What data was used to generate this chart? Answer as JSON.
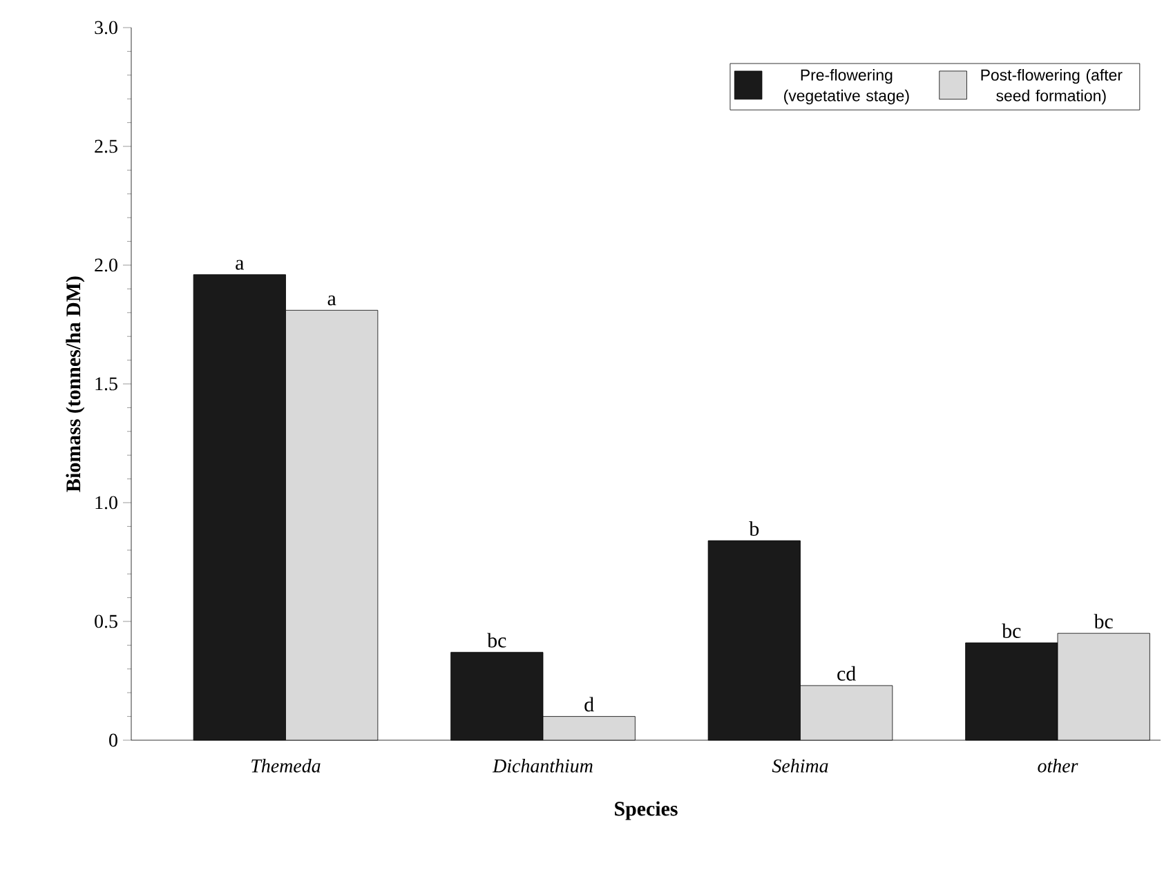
{
  "chart_data": {
    "type": "bar",
    "xlabel": "Species",
    "ylabel": "Biomass (tonnes/ha DM)",
    "categories": [
      "Themeda",
      "Dichanthium",
      "Sehima",
      "other"
    ],
    "series": [
      {
        "name": "Pre-flowering (vegetative stage)",
        "color": "#1a1a1a",
        "values": [
          1.96,
          0.37,
          0.84,
          0.41
        ],
        "value_labels": [
          "a",
          "bc",
          "b",
          "bc"
        ]
      },
      {
        "name": "Post-flowering (after seed formation)",
        "color": "#d9d9d9",
        "values": [
          1.81,
          0.1,
          0.23,
          0.45
        ],
        "value_labels": [
          "a",
          "d",
          "cd",
          "bc"
        ]
      }
    ],
    "ylim": [
      0,
      3.0
    ],
    "yticks": [
      0,
      {
        "value": 0.5,
        "label": "0.5"
      },
      {
        "value": 1.0,
        "label": "1.0"
      },
      {
        "value": 1.5,
        "label": "1.5"
      },
      {
        "value": 2.0,
        "label": "2.0"
      },
      {
        "value": 2.5,
        "label": "2.5"
      },
      {
        "value": 3.0,
        "label": "3.0"
      }
    ],
    "legend": "top right",
    "grid": false
  }
}
